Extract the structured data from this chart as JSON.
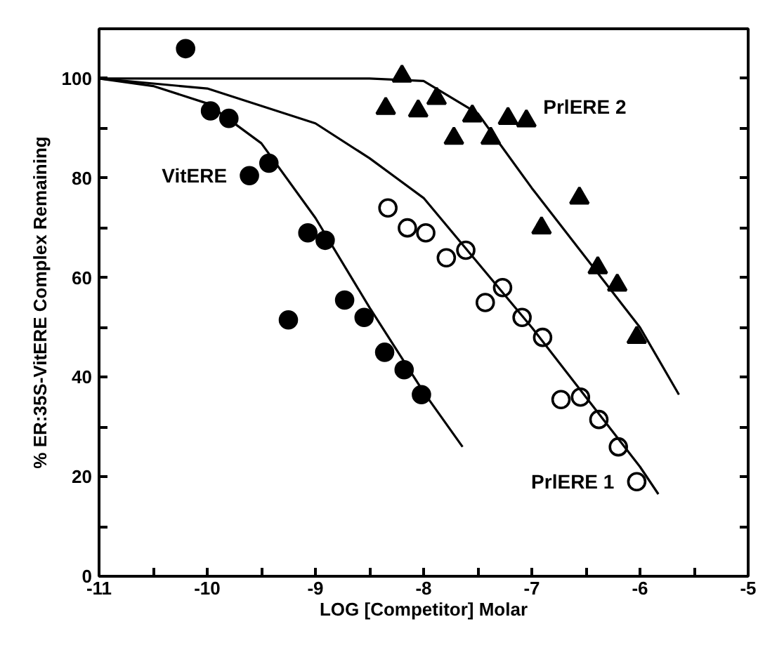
{
  "chart_data": {
    "type": "scatter",
    "xlabel": "LOG [Competitor] Molar",
    "ylabel": "% ER:35S-VitERE Complex Remaining",
    "xlim": [
      -11,
      -5
    ],
    "ylim": [
      0,
      110
    ],
    "xticks": [
      -11,
      {
        "value": -10.5,
        "label": null
      },
      -10,
      {
        "value": -9.5,
        "label": null
      },
      -9,
      {
        "value": -8.5,
        "label": null
      },
      -8,
      {
        "value": -7.5,
        "label": null
      },
      -7,
      {
        "value": -6.5,
        "label": null
      },
      -6,
      {
        "value": -5.5,
        "label": null
      },
      -5
    ],
    "yticks": [
      0,
      {
        "value": 10,
        "label": null
      },
      20,
      {
        "value": 30,
        "label": null
      },
      40,
      {
        "value": 50,
        "label": null
      },
      60,
      {
        "value": 70,
        "label": null
      },
      80,
      {
        "value": 90,
        "label": null
      },
      100
    ],
    "grid": false,
    "series": [
      {
        "marker": "circle",
        "color": "#000000",
        "x": [
          -10.2,
          -9.97,
          -9.8,
          -9.61,
          -9.43,
          -9.25,
          -9.07,
          -8.91,
          -8.73,
          -8.55,
          -8.36,
          -8.18,
          -8.02
        ],
        "values": [
          106,
          93.5,
          92,
          80.5,
          83,
          51.5,
          69,
          67.5,
          55.5,
          52,
          45,
          41.5,
          36.5
        ]
      },
      {
        "marker": "circle",
        "color": "#ffffff",
        "x": [
          -8.33,
          -8.15,
          -7.98,
          -7.79,
          -7.61,
          -7.43,
          -7.27,
          -7.09,
          -6.9,
          -6.73,
          -6.55,
          -6.38,
          -6.2,
          -6.03
        ],
        "values": [
          74,
          70,
          69,
          64,
          65.5,
          55,
          58,
          52,
          48,
          35.5,
          36,
          31.5,
          26,
          19
        ]
      },
      {
        "marker": "triangle",
        "color": "#000000",
        "x": [
          -8.35,
          -8.2,
          -8.05,
          -7.88,
          -7.72,
          -7.55,
          -7.38,
          -7.22,
          -7.05,
          -6.91,
          -6.56,
          -6.39,
          -6.21,
          -6.03
        ],
        "values": [
          94,
          100.5,
          93.5,
          96,
          88,
          92.5,
          88,
          92,
          91.5,
          70,
          76,
          62,
          58.5,
          48
        ]
      },
      {
        "type": "line",
        "marker": "none",
        "line_style": "solid",
        "color": "#000000",
        "x": [
          -11,
          -10.5,
          -10,
          -9.5,
          -9,
          -8.5,
          -8,
          -7.64
        ],
        "values": [
          100,
          98.5,
          95,
          87,
          72,
          54,
          37,
          26
        ]
      },
      {
        "type": "line",
        "marker": "none",
        "line_style": "solid",
        "color": "#000000",
        "x": [
          -11,
          -10,
          -9,
          -8.5,
          -8,
          -7.5,
          -7,
          -6.5,
          -6,
          -5.83
        ],
        "values": [
          100,
          98,
          91,
          84,
          76,
          63,
          50,
          36,
          22,
          16.5
        ]
      },
      {
        "type": "line",
        "marker": "none",
        "line_style": "solid",
        "color": "#000000",
        "x": [
          -11,
          -8.5,
          -8,
          -7.5,
          -7,
          -6.5,
          -6,
          -5.64
        ],
        "values": [
          100,
          100,
          99.5,
          93,
          78,
          64,
          50,
          36.5
        ]
      }
    ],
    "annotations": [
      {
        "text": "VitERE",
        "x": -9.61,
        "y": 80.5
      },
      {
        "text": "PrlERE 2",
        "x": -7.05,
        "y": 91.5
      },
      {
        "text": "PrlERE 1",
        "x": -6.03,
        "y": 19
      }
    ]
  }
}
